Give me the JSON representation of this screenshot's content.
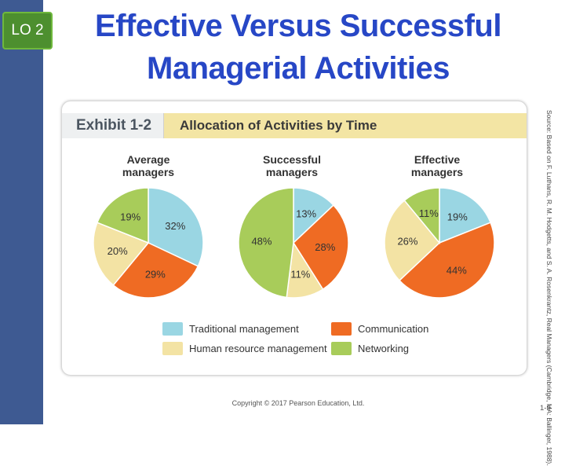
{
  "badge": "LO 2",
  "title_line1": "Effective Versus Successful",
  "title_line2": "Managerial Activities",
  "exhibit": {
    "tab": "Exhibit 1-2",
    "name": "Allocation of Activities by Time"
  },
  "colors": {
    "traditional": "#9ad6e3",
    "communication": "#ef6b23",
    "human_resource": "#f3e3a4",
    "networking": "#a8cc5a"
  },
  "chart_data": {
    "type": "pie",
    "title": "Allocation of Activities by Time",
    "legend": [
      "Traditional management",
      "Communication",
      "Human resource management",
      "Networking"
    ],
    "charts": [
      {
        "label_line1": "Average",
        "label_line2": "managers",
        "slices": [
          {
            "name": "Traditional management",
            "value": 32,
            "label": "32%"
          },
          {
            "name": "Communication",
            "value": 29,
            "label": "29%"
          },
          {
            "name": "Human resource management",
            "value": 20,
            "label": "20%"
          },
          {
            "name": "Networking",
            "value": 19,
            "label": "19%"
          }
        ]
      },
      {
        "label_line1": "Successful",
        "label_line2": "managers",
        "slices": [
          {
            "name": "Traditional management",
            "value": 13,
            "label": "13%"
          },
          {
            "name": "Communication",
            "value": 28,
            "label": "28%"
          },
          {
            "name": "Human resource management",
            "value": 11,
            "label": "11%"
          },
          {
            "name": "Networking",
            "value": 48,
            "label": "48%"
          }
        ]
      },
      {
        "label_line1": "Effective",
        "label_line2": "managers",
        "slices": [
          {
            "name": "Traditional management",
            "value": 19,
            "label": "19%"
          },
          {
            "name": "Communication",
            "value": 44,
            "label": "44%"
          },
          {
            "name": "Human resource management",
            "value": 26,
            "label": "26%"
          },
          {
            "name": "Networking",
            "value": 11,
            "label": "11%"
          }
        ]
      }
    ]
  },
  "legend_labels": {
    "traditional": "Traditional management",
    "communication": "Communication",
    "human_resource": "Human resource management",
    "networking": "Networking"
  },
  "source_note": "Source: Based on F. Luthans, R. M. Hodgetts, and S. A. Rosenkrantz, Real Managers (Cambridge, MA: Ballinger, 1988).",
  "copyright": "Copyright © 2017 Pearson Education, Ltd.",
  "page_number": "1-9"
}
